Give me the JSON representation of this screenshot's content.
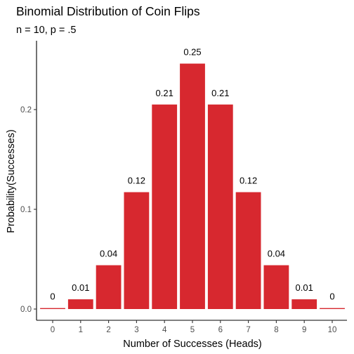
{
  "chart_data": {
    "type": "bar",
    "title": "Binomial Distribution of Coin Flips",
    "subtitle": "n = 10, p = .5",
    "xlabel": "Number of Successes (Heads)",
    "ylabel": "Probability(Successes)",
    "categories": [
      "0",
      "1",
      "2",
      "3",
      "4",
      "5",
      "6",
      "7",
      "8",
      "9",
      "10"
    ],
    "values": [
      0.000977,
      0.009766,
      0.043945,
      0.117188,
      0.205078,
      0.246094,
      0.205078,
      0.117188,
      0.043945,
      0.009766,
      0.000977
    ],
    "data_labels": [
      "0",
      "0.01",
      "0.04",
      "0.12",
      "0.21",
      "0.25",
      "0.21",
      "0.12",
      "0.04",
      "0.01",
      "0"
    ],
    "y_ticks": [
      0,
      0.1,
      0.2
    ],
    "y_tick_labels": [
      "0.0",
      "0.1",
      "0.2"
    ],
    "ylim": [
      0,
      0.26
    ],
    "bar_color": "#d7282f",
    "grid": false,
    "legend": "none"
  }
}
